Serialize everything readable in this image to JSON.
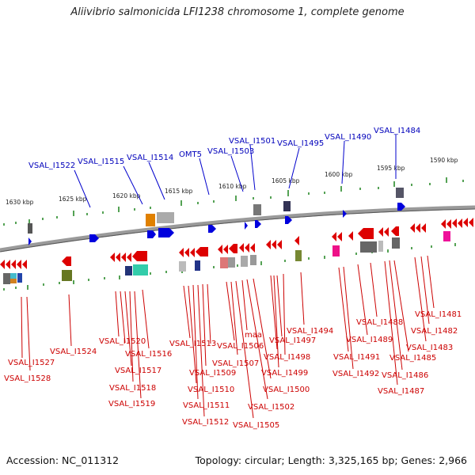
{
  "header": {
    "title": "Aliivibrio salmonicida LFI1238 chromosome 1, complete genome"
  },
  "footer": {
    "accession": "Accession: NC_011312",
    "summary": "Topology: circular; Length: 3,325,165 bp; Genes: 2,966"
  },
  "colors": {
    "forward": "#0000dd",
    "reverse": "#dd0000",
    "backbone": "#888888",
    "ticks": "#228822"
  },
  "kbp_ticks": [
    {
      "label": "1630 kbp"
    },
    {
      "label": "1625 kbp"
    },
    {
      "label": "1620 kbp"
    },
    {
      "label": "1615 kbp"
    },
    {
      "label": "1610 kbp"
    },
    {
      "label": "1605 kbp"
    },
    {
      "label": "1600 kbp"
    },
    {
      "label": "1595 kbp"
    },
    {
      "label": "1590 kbp"
    }
  ],
  "forward_labels": [
    "VSAL_I1522",
    "VSAL_I1515",
    "VSAL_I1514",
    "OMT5",
    "VSAL_I1503",
    "VSAL_I1501",
    "VSAL_I1495",
    "VSAL_I1490",
    "VSAL_I1484"
  ],
  "reverse_labels": [
    "VSAL_I1527",
    "VSAL_I1528",
    "VSAL_I1524",
    "VSAL_I1520",
    "VSAL_I1516",
    "VSAL_I1517",
    "VSAL_I1518",
    "VSAL_I1519",
    "VSAL_I1513",
    "VSAL_I1509",
    "VSAL_I1510",
    "VSAL_I1511",
    "VSAL_I1512",
    "VSAL_I1506",
    "maa",
    "VSAL_I1507",
    "VSAL_I1505",
    "VSAL_I1502",
    "VSAL_I1500",
    "VSAL_I1499",
    "VSAL_I1498",
    "VSAL_I1497",
    "VSAL_I1494",
    "VSAL_I1491",
    "VSAL_I1492",
    "VSAL_I1489",
    "VSAL_I1488",
    "VSAL_I1487",
    "VSAL_I1486",
    "VSAL_I1485",
    "VSAL_I1483",
    "VSAL_I1482",
    "VSAL_I1481"
  ]
}
